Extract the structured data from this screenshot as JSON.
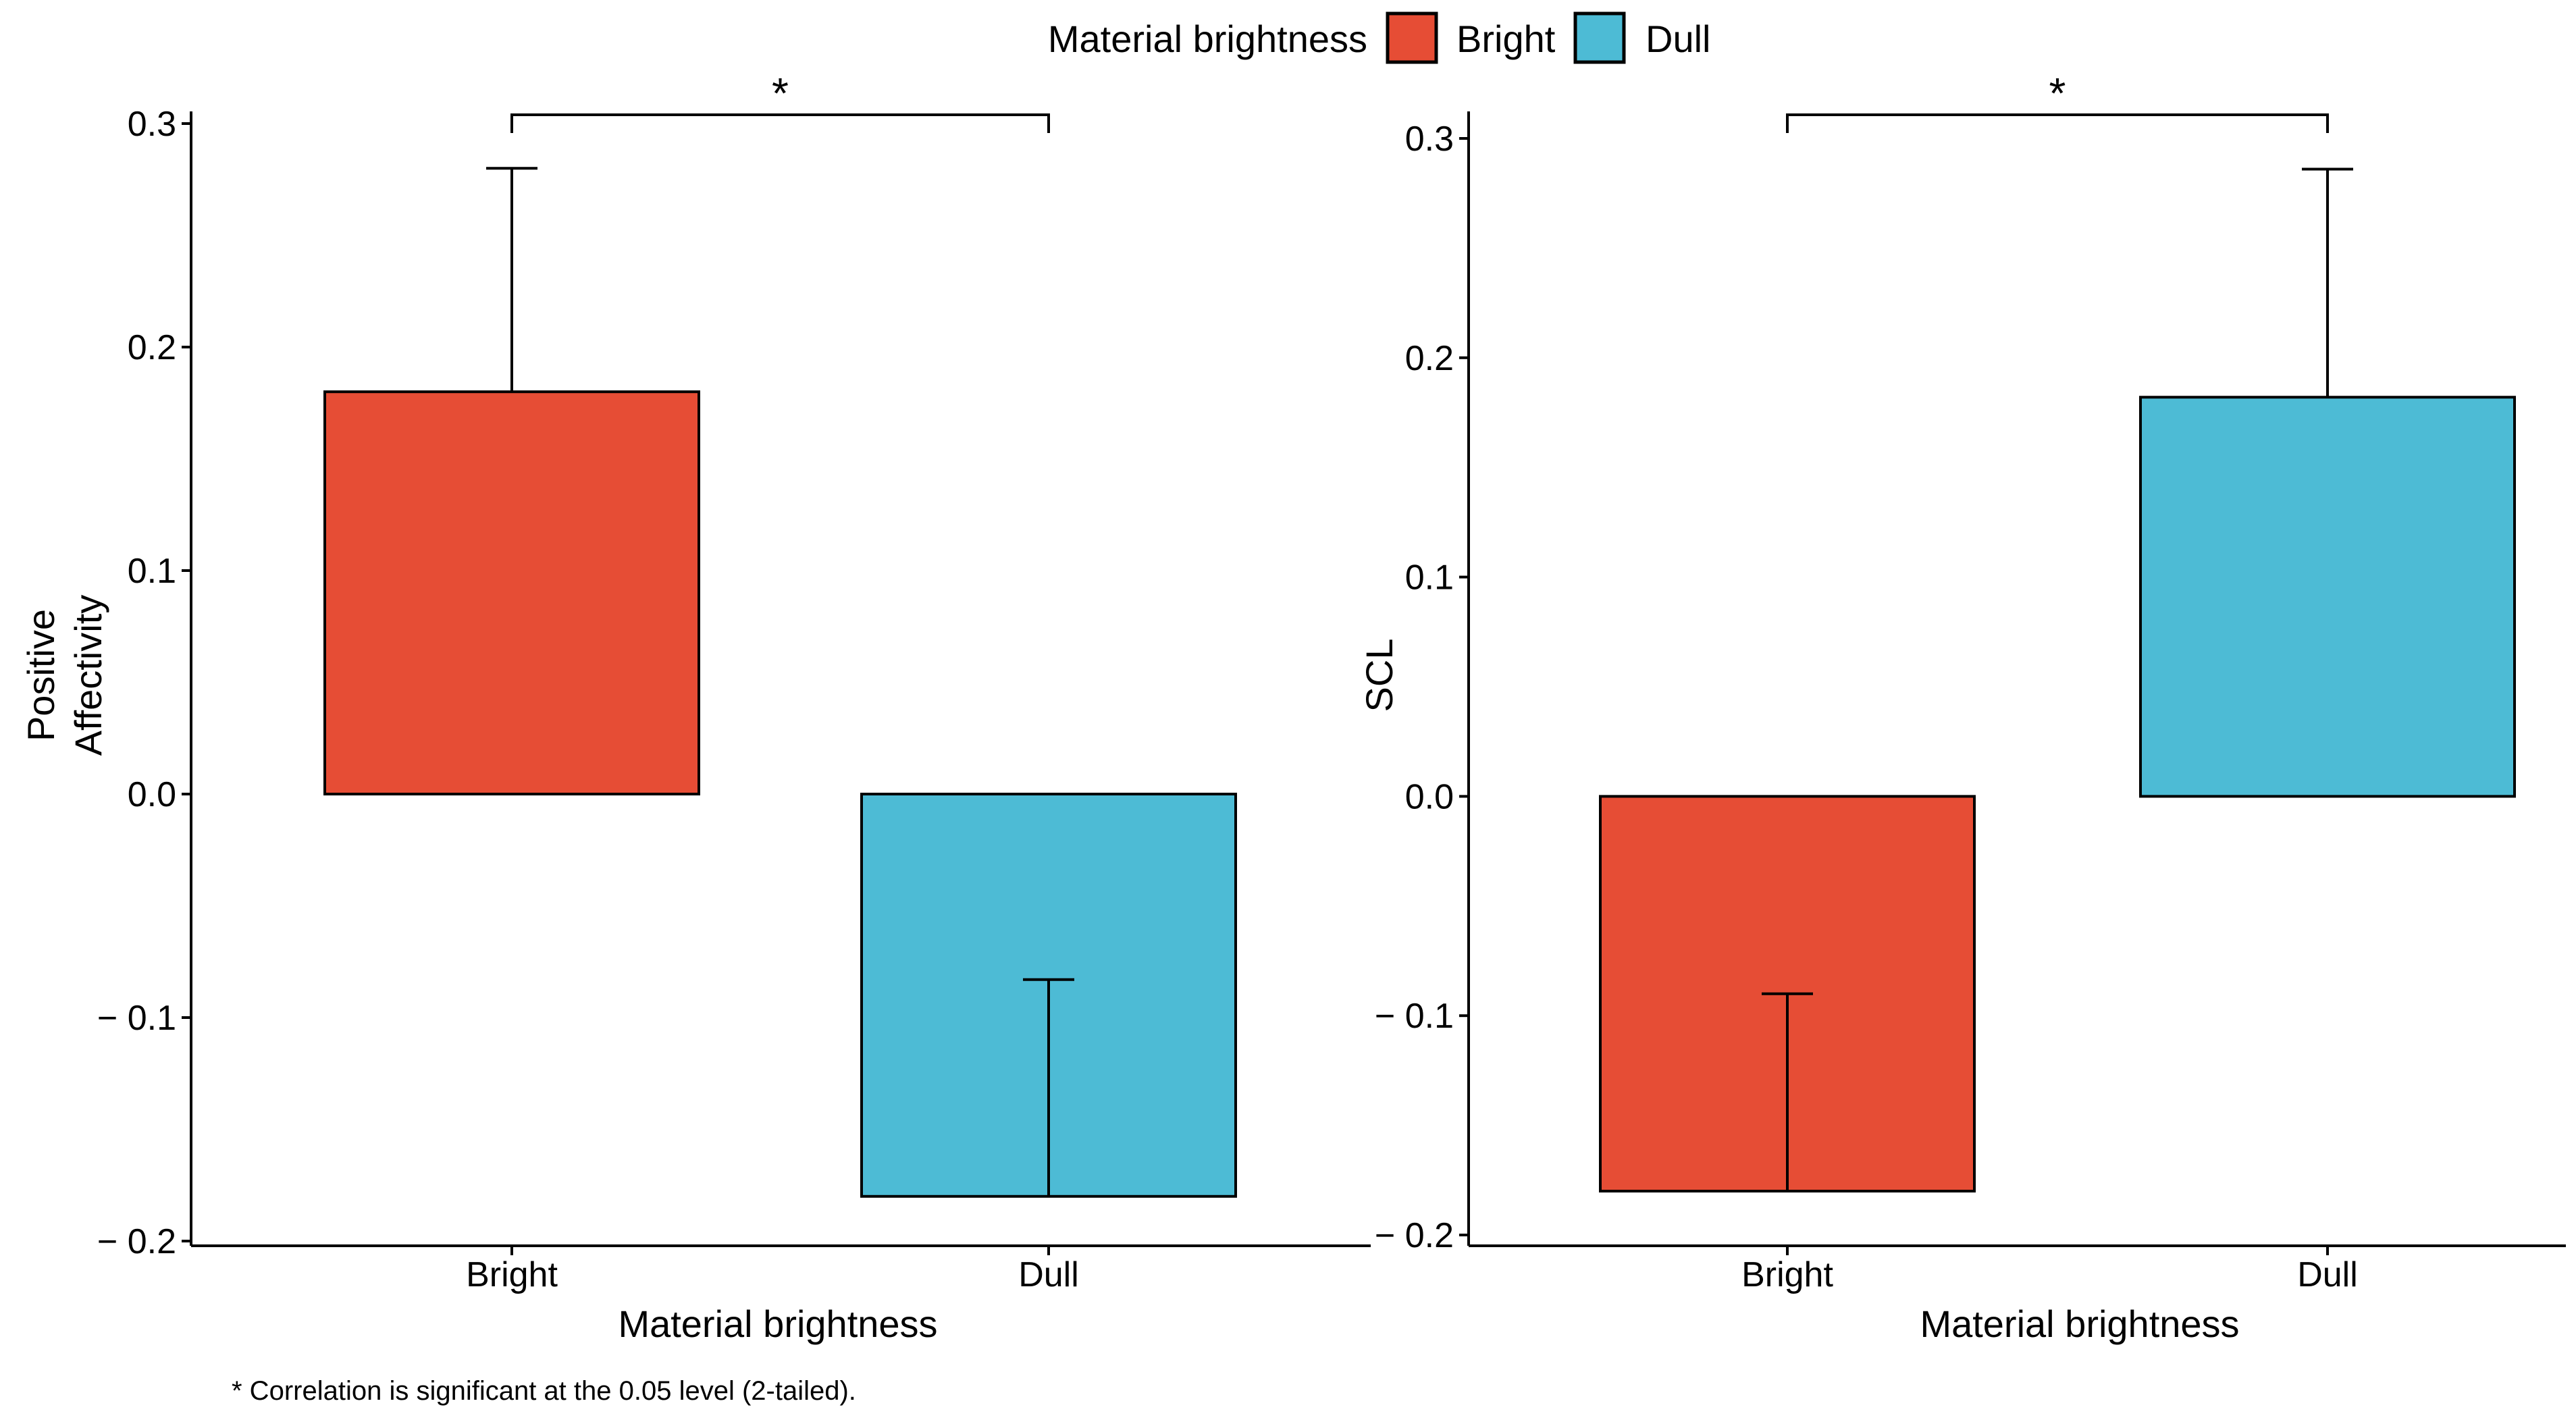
{
  "legend": {
    "title": "Material brightness",
    "items": [
      {
        "label": "Bright",
        "color": "#E64D35"
      },
      {
        "label": "Dull",
        "color": "#4DBBD5"
      }
    ]
  },
  "footnote": "* Correlation is significant at the 0.05 level (2-tailed).",
  "chart_data": [
    {
      "type": "bar",
      "title": "",
      "xlabel": "Material brightness",
      "ylabel_lines": [
        "Positive",
        "Affectivity"
      ],
      "categories": [
        "Bright",
        "Dull"
      ],
      "values": [
        0.18,
        -0.18
      ],
      "error_tips": [
        0.28,
        -0.083
      ],
      "colors": [
        "#E64D35",
        "#4DBBD5"
      ],
      "ylim": [
        -0.2,
        0.3
      ],
      "yticks": [
        -0.2,
        -0.1,
        0.0,
        0.1,
        0.2,
        0.3
      ],
      "ytick_labels": [
        "− 0.2",
        "− 0.1",
        "0.0",
        "0.1",
        "0.2",
        "0.3"
      ],
      "significance": {
        "from": "Bright",
        "to": "Dull",
        "y": 0.31,
        "label": "*"
      }
    },
    {
      "type": "bar",
      "title": "",
      "xlabel": "Material brightness",
      "ylabel_lines": [
        "SCL"
      ],
      "categories": [
        "Bright",
        "Dull"
      ],
      "values": [
        -0.18,
        0.182
      ],
      "error_tips": [
        -0.09,
        0.286
      ],
      "colors": [
        "#E64D35",
        "#4DBBD5"
      ],
      "ylim": [
        -0.2,
        0.3
      ],
      "yticks": [
        -0.2,
        -0.1,
        0.0,
        0.1,
        0.2,
        0.3
      ],
      "ytick_labels": [
        "− 0.2",
        "− 0.1",
        "0.0",
        "0.1",
        "0.2",
        "0.3"
      ],
      "significance": {
        "from": "Bright",
        "to": "Dull",
        "y": 0.31,
        "label": "*"
      }
    }
  ]
}
